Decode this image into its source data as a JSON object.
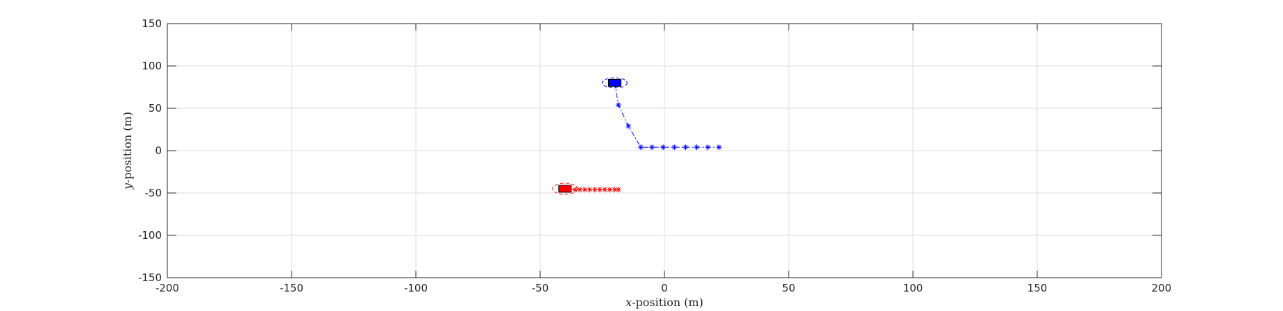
{
  "chart_data": {
    "type": "scatter",
    "xlabel": {
      "var": "x",
      "rest": "-position (m)"
    },
    "ylabel": {
      "var": "y",
      "rest": "-position (m)"
    },
    "xlim": [
      -200,
      200
    ],
    "ylim": [
      -150,
      150
    ],
    "xticks": [
      "-200",
      "-150",
      "-100",
      "-50",
      "0",
      "50",
      "100",
      "150",
      "200"
    ],
    "yticks": [
      "150",
      "100",
      "50",
      "0",
      "-50",
      "-100",
      "-150"
    ],
    "grid": true,
    "series": [
      {
        "color": "#0000ff",
        "marker": "asterisk",
        "line_style": "dash-dot",
        "vehicle": {
          "x": -20,
          "y": 80
        },
        "uncertainty_ellipse": {
          "cx": -20,
          "cy": 80,
          "rx": 5,
          "ry": 6
        },
        "points": [
          {
            "x": -18.5,
            "y": 54
          },
          {
            "x": -14.5,
            "y": 29
          },
          {
            "x": -9.5,
            "y": 4
          },
          {
            "x": -5,
            "y": 4
          },
          {
            "x": -0.5,
            "y": 4
          },
          {
            "x": 4,
            "y": 4
          },
          {
            "x": 8.5,
            "y": 4
          },
          {
            "x": 13,
            "y": 4
          },
          {
            "x": 17.5,
            "y": 4
          },
          {
            "x": 22,
            "y": 4
          }
        ]
      },
      {
        "color": "#ff0000",
        "marker": "asterisk",
        "line_style": "dash-dot",
        "vehicle": {
          "x": -40,
          "y": -45
        },
        "uncertainty_ellipse": {
          "cx": -40,
          "cy": -45,
          "rx": 5,
          "ry": 6.5
        },
        "points": [
          {
            "x": -36,
            "y": -46
          },
          {
            "x": -34,
            "y": -46
          },
          {
            "x": -32,
            "y": -46
          },
          {
            "x": -30,
            "y": -46
          },
          {
            "x": -28,
            "y": -46
          },
          {
            "x": -26,
            "y": -46
          },
          {
            "x": -24,
            "y": -46
          },
          {
            "x": -22,
            "y": -46
          },
          {
            "x": -20,
            "y": -46
          },
          {
            "x": -18.5,
            "y": -46
          }
        ]
      }
    ]
  }
}
